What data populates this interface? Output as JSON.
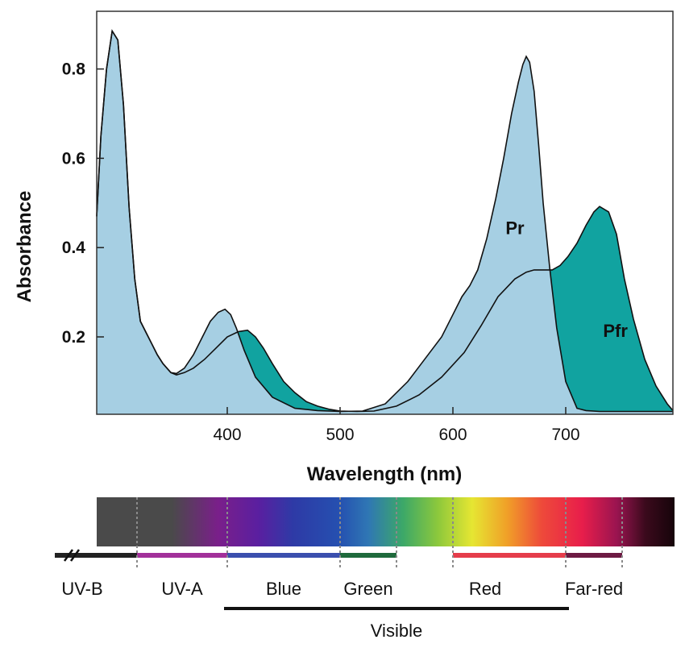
{
  "colors": {
    "pr_fill": "#a6cfe3",
    "pfr_fill": "#11a3a0",
    "outline": "#111111",
    "frame": "#333333"
  },
  "chart_data": {
    "type": "area",
    "title": "",
    "xlabel": "Wavelength (nm)",
    "ylabel": "Absorbance",
    "xlim": [
      280,
      800
    ],
    "ylim": [
      0.03,
      0.9
    ],
    "xticks": [
      400,
      500,
      600,
      700
    ],
    "yticks": [
      0.2,
      0.4,
      0.6,
      0.8
    ],
    "xtick_labels": [
      "400",
      "500",
      "600",
      "700"
    ],
    "ytick_labels": [
      "0.2",
      "0.4",
      "0.6",
      "0.8"
    ],
    "series": [
      {
        "name": "Pr",
        "label_at": [
          655,
          0.43
        ],
        "x": [
          280,
          288,
          293,
          298,
          303,
          308,
          313,
          318,
          323,
          328,
          333,
          338,
          343,
          350,
          355,
          362,
          370,
          378,
          385,
          392,
          398,
          403,
          408,
          415,
          425,
          440,
          460,
          480,
          500,
          520,
          540,
          560,
          575,
          590,
          600,
          608,
          615,
          622,
          630,
          638,
          645,
          652,
          658,
          662,
          665,
          668,
          672,
          676,
          680,
          686,
          692,
          700,
          710,
          718,
          730,
          750,
          780,
          800
        ],
        "values": [
          0.47,
          0.65,
          0.8,
          0.885,
          0.865,
          0.72,
          0.49,
          0.33,
          0.235,
          0.21,
          0.185,
          0.16,
          0.14,
          0.12,
          0.118,
          0.13,
          0.16,
          0.2,
          0.235,
          0.255,
          0.262,
          0.25,
          0.22,
          0.17,
          0.11,
          0.065,
          0.04,
          0.035,
          0.033,
          0.034,
          0.05,
          0.1,
          0.15,
          0.2,
          0.25,
          0.29,
          0.315,
          0.35,
          0.42,
          0.51,
          0.6,
          0.7,
          0.77,
          0.81,
          0.828,
          0.815,
          0.75,
          0.63,
          0.5,
          0.35,
          0.22,
          0.1,
          0.04,
          0.035,
          0.033,
          0.033,
          0.033,
          0.033
        ]
      },
      {
        "name": "Pfr",
        "label_at": [
          744,
          0.2
        ],
        "x": [
          280,
          288,
          293,
          298,
          303,
          308,
          313,
          318,
          323,
          328,
          333,
          338,
          343,
          350,
          355,
          362,
          370,
          380,
          390,
          400,
          410,
          418,
          425,
          432,
          440,
          450,
          460,
          470,
          480,
          490,
          500,
          515,
          530,
          550,
          570,
          590,
          610,
          625,
          640,
          655,
          665,
          672,
          680,
          688,
          695,
          702,
          710,
          718,
          725,
          730,
          738,
          745,
          752,
          760,
          770,
          780,
          790,
          800
        ],
        "values": [
          0.47,
          0.65,
          0.8,
          0.885,
          0.865,
          0.72,
          0.49,
          0.33,
          0.235,
          0.21,
          0.185,
          0.16,
          0.14,
          0.12,
          0.115,
          0.12,
          0.13,
          0.15,
          0.175,
          0.2,
          0.212,
          0.215,
          0.2,
          0.175,
          0.14,
          0.1,
          0.075,
          0.055,
          0.045,
          0.038,
          0.034,
          0.033,
          0.034,
          0.045,
          0.07,
          0.11,
          0.165,
          0.225,
          0.29,
          0.33,
          0.345,
          0.35,
          0.35,
          0.35,
          0.36,
          0.38,
          0.41,
          0.45,
          0.48,
          0.492,
          0.48,
          0.43,
          0.33,
          0.24,
          0.15,
          0.09,
          0.05,
          0.035
        ]
      }
    ]
  },
  "spectrum": {
    "range_nm": [
      280,
      800
    ],
    "regions": [
      {
        "name": "UV-B",
        "start": 280,
        "end": 320,
        "color": "#222222"
      },
      {
        "name": "UV-A",
        "start": 320,
        "end": 400,
        "color": "#a2309a"
      },
      {
        "name": "Blue",
        "start": 400,
        "end": 500,
        "color": "#3b4fae"
      },
      {
        "name": "Green",
        "start": 500,
        "end": 550,
        "color": "#1f6a3c"
      },
      {
        "name": "Red",
        "start": 600,
        "end": 700,
        "color": "#e53d4b"
      },
      {
        "name": "Far-red",
        "start": 700,
        "end": 750,
        "color": "#6d1a43"
      }
    ],
    "visible_label": "Visible",
    "visible_range": [
      400,
      700
    ],
    "gradient_stops": [
      [
        "#4a4a4a",
        0.0
      ],
      [
        "#4a4a4a",
        0.13
      ],
      [
        "#7a1f8a",
        0.21
      ],
      [
        "#5a1fa0",
        0.28
      ],
      [
        "#2e3aa6",
        0.34
      ],
      [
        "#2550b0",
        0.42
      ],
      [
        "#2f77b4",
        0.47
      ],
      [
        "#3ca868",
        0.53
      ],
      [
        "#8cc83c",
        0.59
      ],
      [
        "#e6e632",
        0.65
      ],
      [
        "#f0a028",
        0.71
      ],
      [
        "#ee4a3a",
        0.77
      ],
      [
        "#e81e4b",
        0.84
      ],
      [
        "#9a1450",
        0.9
      ],
      [
        "#3a0a1c",
        0.95
      ],
      [
        "#16040a",
        1.0
      ]
    ]
  }
}
